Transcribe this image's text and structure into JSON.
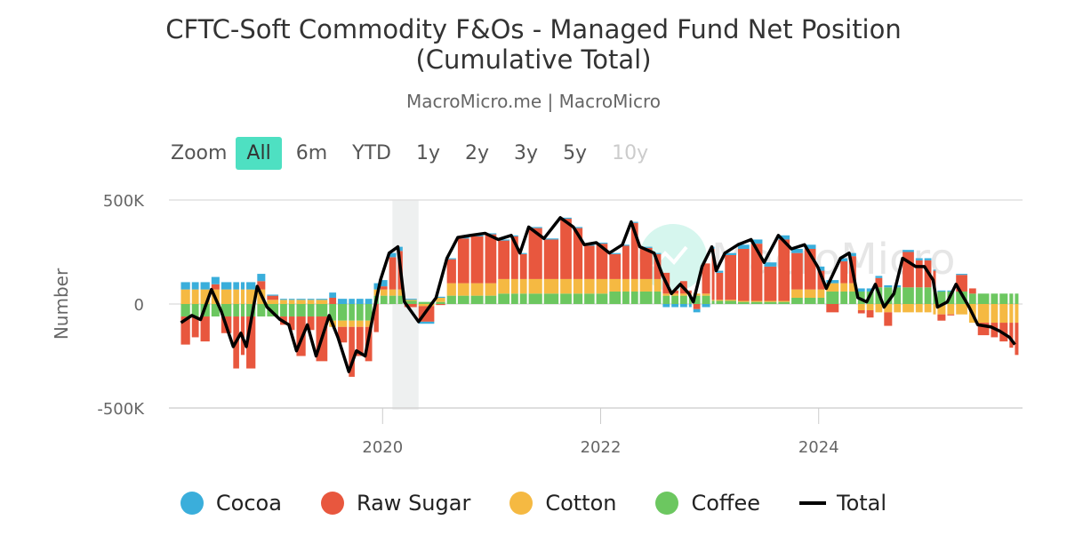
{
  "header": {
    "title_line1": "CFTC-Soft Commodity F&Os - Managed Fund Net Position",
    "title_line2": "(Cumulative Total)",
    "subtitle": "MacroMicro.me | MacroMicro"
  },
  "zoom": {
    "label": "Zoom",
    "buttons": [
      {
        "label": "All",
        "state": "active"
      },
      {
        "label": "6m"
      },
      {
        "label": "YTD"
      },
      {
        "label": "1y"
      },
      {
        "label": "2y"
      },
      {
        "label": "3y"
      },
      {
        "label": "5y"
      },
      {
        "label": "10y",
        "state": "disabled"
      }
    ]
  },
  "watermark": "MacroMicro",
  "chart_data": {
    "type": "bar",
    "stacked": true,
    "ylabel": "Number",
    "ylim": [
      -500,
      500
    ],
    "y_unit": "K",
    "yticks": [
      {
        "v": 500,
        "label": "500K"
      },
      {
        "v": 0,
        "label": "0"
      },
      {
        "v": -500,
        "label": "-500K"
      }
    ],
    "xlim": [
      2018.04,
      2025.87
    ],
    "xticks": [
      {
        "v": 2020,
        "label": "2020"
      },
      {
        "v": 2022,
        "label": "2022"
      },
      {
        "v": 2024,
        "label": "2024"
      }
    ],
    "shaded_period": [
      2020.09,
      2020.33
    ],
    "colors": {
      "Cocoa": "#3aaedb",
      "Raw Sugar": "#e8573e",
      "Cotton": "#f5b942",
      "Coffee": "#6cc760",
      "Total": "#000000"
    },
    "x": [
      2018.15,
      2018.25,
      2018.33,
      2018.43,
      2018.52,
      2018.63,
      2018.7,
      2018.75,
      2018.85,
      2018.94,
      2019.06,
      2019.14,
      2019.21,
      2019.31,
      2019.39,
      2019.51,
      2019.59,
      2019.69,
      2019.76,
      2019.84,
      2019.92,
      2019.98,
      2020.06,
      2020.14,
      2020.2,
      2020.33,
      2020.49,
      2020.59,
      2020.69,
      2020.81,
      2020.94,
      2021.06,
      2021.18,
      2021.26,
      2021.34,
      2021.48,
      2021.63,
      2021.75,
      2021.85,
      2021.96,
      2022.08,
      2022.2,
      2022.28,
      2022.36,
      2022.49,
      2022.57,
      2022.65,
      2022.73,
      2022.81,
      2022.85,
      2022.93,
      2023.02,
      2023.06,
      2023.14,
      2023.26,
      2023.38,
      2023.5,
      2023.63,
      2023.75,
      2023.87,
      2023.99,
      2024.07,
      2024.2,
      2024.28,
      2024.36,
      2024.44,
      2024.52,
      2024.6,
      2024.69,
      2024.77,
      2024.89,
      2024.97,
      2025.05,
      2025.09,
      2025.18,
      2025.26,
      2025.38,
      2025.46,
      2025.58,
      2025.66,
      2025.75,
      2025.8
    ],
    "series": [
      {
        "name": "Cocoa",
        "values": [
          35,
          35,
          35,
          35,
          35,
          35,
          35,
          35,
          35,
          5,
          5,
          5,
          5,
          5,
          5,
          25,
          25,
          25,
          25,
          25,
          30,
          30,
          20,
          20,
          5,
          -10,
          5,
          5,
          5,
          5,
          5,
          5,
          5,
          5,
          5,
          5,
          5,
          5,
          5,
          5,
          5,
          5,
          5,
          5,
          5,
          -15,
          -15,
          -15,
          -15,
          -15,
          -15,
          10,
          10,
          10,
          20,
          20,
          20,
          20,
          20,
          20,
          20,
          15,
          15,
          15,
          15,
          15,
          10,
          10,
          10,
          10,
          10,
          10,
          5,
          5,
          5,
          5,
          0,
          0,
          0,
          0,
          0,
          0
        ]
      },
      {
        "name": "Raw Sugar",
        "values": [
          -135,
          -100,
          -120,
          25,
          -80,
          -250,
          -185,
          -250,
          40,
          20,
          -40,
          -65,
          -190,
          -65,
          -215,
          30,
          -75,
          -240,
          -140,
          -165,
          -135,
          15,
          155,
          185,
          -15,
          -75,
          -5,
          115,
          215,
          225,
          235,
          185,
          205,
          120,
          245,
          190,
          290,
          245,
          160,
          170,
          120,
          160,
          270,
          150,
          120,
          100,
          15,
          60,
          15,
          -25,
          145,
          245,
          130,
          215,
          250,
          275,
          165,
          295,
          175,
          195,
          90,
          -40,
          105,
          130,
          -15,
          -35,
          45,
          -65,
          0,
          170,
          130,
          130,
          100,
          -30,
          -5,
          80,
          25,
          -60,
          -70,
          -90,
          -120,
          -155
        ]
      },
      {
        "name": "Cotton",
        "values": [
          70,
          70,
          70,
          70,
          70,
          70,
          70,
          70,
          70,
          20,
          20,
          20,
          20,
          20,
          20,
          -30,
          -30,
          -30,
          -30,
          -30,
          30,
          30,
          30,
          30,
          5,
          -10,
          20,
          60,
          60,
          60,
          60,
          70,
          70,
          70,
          70,
          70,
          70,
          70,
          70,
          70,
          60,
          60,
          60,
          60,
          60,
          10,
          10,
          10,
          10,
          10,
          10,
          5,
          5,
          5,
          5,
          5,
          5,
          5,
          40,
          40,
          40,
          40,
          40,
          40,
          -30,
          -30,
          -40,
          -40,
          -40,
          -40,
          -40,
          -40,
          -50,
          -50,
          -50,
          -50,
          -90,
          -90,
          -90,
          -90,
          -90,
          -90
        ]
      },
      {
        "name": "Coffee",
        "values": [
          -60,
          -60,
          -60,
          -60,
          -60,
          -60,
          -60,
          -60,
          -60,
          -60,
          -60,
          -60,
          -60,
          -60,
          -60,
          -80,
          -80,
          -80,
          -80,
          -80,
          40,
          40,
          40,
          40,
          15,
          10,
          10,
          40,
          40,
          40,
          40,
          50,
          50,
          50,
          50,
          50,
          50,
          50,
          50,
          50,
          60,
          60,
          60,
          60,
          60,
          40,
          40,
          40,
          40,
          40,
          40,
          15,
          15,
          15,
          10,
          10,
          10,
          10,
          30,
          30,
          30,
          60,
          60,
          60,
          60,
          60,
          80,
          80,
          80,
          80,
          80,
          80,
          60,
          60,
          60,
          60,
          50,
          50,
          50,
          50,
          50,
          50
        ]
      },
      {
        "name": "Total",
        "type": "line",
        "values": [
          -90,
          -55,
          -75,
          70,
          -35,
          -205,
          -140,
          -205,
          85,
          -15,
          -75,
          -100,
          -225,
          -100,
          -250,
          -55,
          -160,
          -325,
          -225,
          -250,
          -35,
          115,
          245,
          275,
          10,
          -85,
          30,
          220,
          320,
          330,
          340,
          310,
          330,
          245,
          370,
          315,
          415,
          370,
          285,
          295,
          245,
          285,
          395,
          275,
          245,
          135,
          50,
          95,
          50,
          10,
          180,
          275,
          160,
          245,
          285,
          310,
          200,
          330,
          265,
          285,
          180,
          75,
          220,
          245,
          30,
          10,
          95,
          -15,
          50,
          220,
          180,
          180,
          115,
          -15,
          10,
          95,
          -15,
          -100,
          -110,
          -130,
          -160,
          -195
        ]
      }
    ],
    "legend": {
      "position": "bottom",
      "items": [
        "Cocoa",
        "Raw Sugar",
        "Cotton",
        "Coffee",
        "Total"
      ]
    }
  }
}
